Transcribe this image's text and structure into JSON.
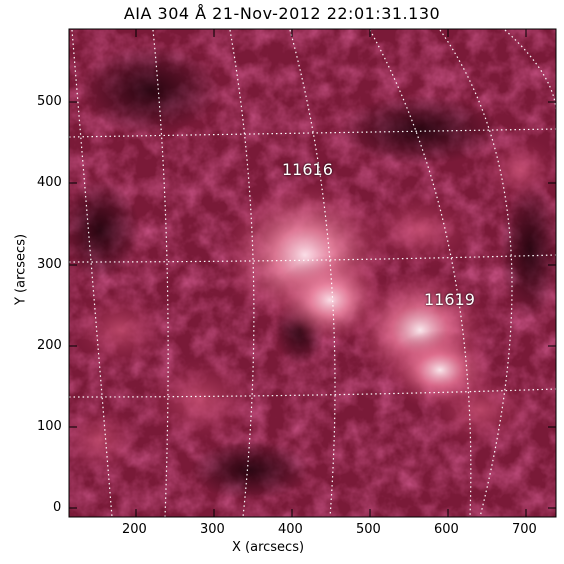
{
  "title": "AIA 304 Å 21-Nov-2012 22:01:31.130",
  "x_axis": {
    "label": "X (arcsecs)",
    "ticks": [
      "200",
      "300",
      "400",
      "500",
      "600",
      "700"
    ]
  },
  "y_axis": {
    "label": "Y (arcsecs)",
    "ticks": [
      "0",
      "100",
      "200",
      "300",
      "400",
      "500"
    ]
  },
  "active_regions": [
    {
      "id": "ar-11616",
      "label": "11616"
    },
    {
      "id": "ar-11619",
      "label": "11619"
    }
  ],
  "colors": {
    "background": "#ffffff",
    "map_dark": "#1a0008",
    "map_mid": "#8a1e3e",
    "map_bright": "#ffe4ea",
    "grid": "#ffffff"
  }
}
